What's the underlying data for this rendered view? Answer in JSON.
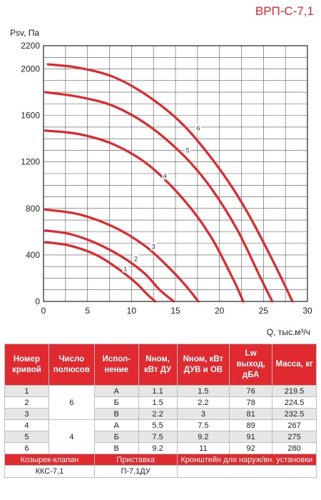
{
  "brand": {
    "model": "ВРП-С-7,1",
    "color": "#e3262a"
  },
  "chart_data": {
    "type": "line",
    "ylabel": "Psv, Па",
    "xlabel": "Q, тыс.м³/ч",
    "xlim": [
      0,
      30
    ],
    "ylim": [
      0,
      2200
    ],
    "x_ticks": [
      "0",
      "5",
      "10",
      "15",
      "20",
      "25",
      "30"
    ],
    "y_ticks": [
      "0",
      "400",
      "800",
      "1200",
      "1600",
      "2000",
      "2200"
    ],
    "grid": true,
    "line_color": "#e3262a",
    "series": [
      {
        "name": "1",
        "label_at": [
          9.3,
          280
        ],
        "x": [
          0.2,
          3.0,
          6.0,
          8.5,
          10.5,
          11.8,
          12.7
        ],
        "y": [
          510,
          480,
          400,
          280,
          160,
          60,
          0
        ]
      },
      {
        "name": "2",
        "label_at": [
          10.5,
          365
        ],
        "x": [
          0.2,
          3.0,
          6.0,
          9.0,
          11.5,
          13.2,
          14.8
        ],
        "y": [
          610,
          580,
          500,
          380,
          240,
          100,
          0
        ]
      },
      {
        "name": "3",
        "label_at": [
          12.5,
          470
        ],
        "x": [
          0.2,
          4.0,
          8.0,
          11.5,
          14.0,
          16.0,
          17.6
        ],
        "y": [
          790,
          750,
          640,
          480,
          310,
          150,
          0
        ]
      },
      {
        "name": "4",
        "label_at": [
          13.8,
          1080
        ],
        "x": [
          0.2,
          4.0,
          8.0,
          12.0,
          16.0,
          19.0,
          21.5,
          22.7
        ],
        "y": [
          1470,
          1440,
          1350,
          1170,
          870,
          560,
          200,
          0
        ]
      },
      {
        "name": "5",
        "label_at": [
          16.4,
          1300
        ],
        "x": [
          0.2,
          4.0,
          8.0,
          12.0,
          16.0,
          19.0,
          22.0,
          24.5,
          26.0
        ],
        "y": [
          1800,
          1760,
          1680,
          1510,
          1250,
          980,
          620,
          230,
          0
        ]
      },
      {
        "name": "6",
        "label_at": [
          17.6,
          1490
        ],
        "x": [
          0.5,
          4.0,
          8.0,
          12.0,
          16.0,
          20.0,
          23.0,
          26.0,
          28.3
        ],
        "y": [
          2040,
          2010,
          1930,
          1760,
          1510,
          1140,
          790,
          360,
          0
        ]
      }
    ]
  },
  "table": {
    "headers": [
      "Номер кривой",
      "Число полюсов",
      "Испол-нение",
      "Nном, кВт ДУ",
      "Nном, кВт ДУВ и ОВ",
      "Lw выход, дБА",
      "Масса, кг"
    ],
    "rows": [
      {
        "curve": "1",
        "exec": "А",
        "n_du": "1.1",
        "n_duv": "1.5",
        "lw": "76",
        "mass": "219.5"
      },
      {
        "curve": "2",
        "exec": "Б",
        "n_du": "1.5",
        "n_duv": "2.2",
        "lw": "78",
        "mass": "224.5"
      },
      {
        "curve": "3",
        "exec": "В",
        "n_du": "2.2",
        "n_duv": "3",
        "lw": "81",
        "mass": "232.5"
      },
      {
        "curve": "4",
        "exec": "А",
        "n_du": "5.5",
        "n_duv": "7.5",
        "lw": "89",
        "mass": "267"
      },
      {
        "curve": "5",
        "exec": "Б",
        "n_du": "7.5",
        "n_duv": "9.2",
        "lw": "91",
        "mass": "275"
      },
      {
        "curve": "6",
        "exec": "В",
        "n_du": "9.2",
        "n_duv": "11",
        "lw": "92",
        "mass": "280"
      }
    ],
    "poles_group_1": "6",
    "poles_group_2": "4",
    "accessories": {
      "visor_label": "Козырек-клапан",
      "stand_label": "Приставка",
      "bracket_label": "Кронштейн для наруж/вн. установки",
      "visor_value": "ККС-7,1",
      "stand_value": "П-7,1ДУ",
      "bracket_value": ""
    }
  }
}
